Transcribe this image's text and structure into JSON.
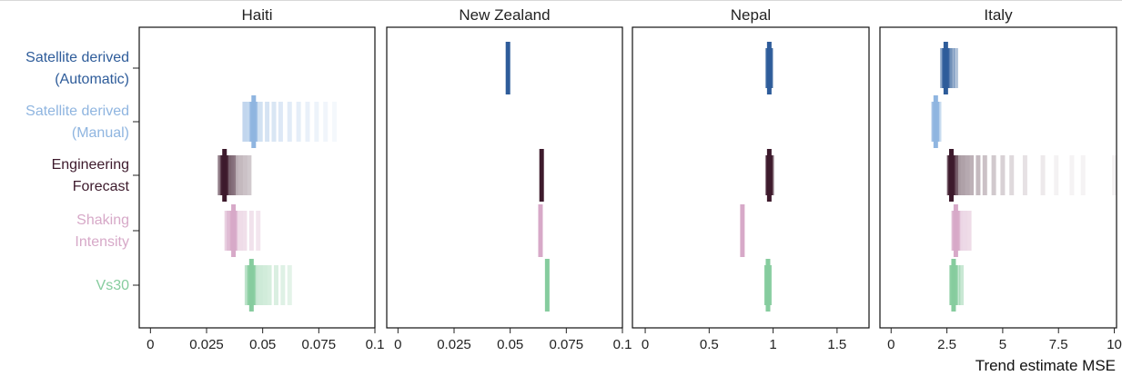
{
  "chart_data": {
    "type": "strip",
    "xlabel": "Trend estimate MSE",
    "categories": [
      {
        "key": "sat_auto",
        "label": [
          "Satellite derived",
          "(Automatic)"
        ],
        "color": "#2E5C9A"
      },
      {
        "key": "sat_manual",
        "label": [
          "Satellite derived",
          "(Manual)"
        ],
        "color": "#8FB5E0"
      },
      {
        "key": "eng",
        "label": [
          "Engineering",
          "Forecast"
        ],
        "color": "#3D1A2C"
      },
      {
        "key": "shaking",
        "label": [
          "Shaking",
          "Intensity"
        ],
        "color": "#D7A9C8"
      },
      {
        "key": "vs30",
        "label": [
          "Vs30"
        ],
        "color": "#86CC9E"
      }
    ],
    "panels": [
      {
        "title": "Haiti",
        "xlim": [
          -0.005,
          0.1
        ],
        "ticks": [
          0,
          0.025,
          0.05,
          0.075,
          0.1
        ],
        "tick_labels": [
          "0",
          "0.025",
          "0.05",
          "0.075",
          "0.1"
        ],
        "series": {
          "sat_auto": {
            "mean": null,
            "spread": []
          },
          "sat_manual": {
            "mean": 0.046,
            "spread": [
              0.042,
              0.044,
              0.045,
              0.047,
              0.049,
              0.052,
              0.055,
              0.058,
              0.062,
              0.066,
              0.07,
              0.074,
              0.078,
              0.082
            ]
          },
          "eng": {
            "mean": 0.033,
            "spread": [
              0.031,
              0.032,
              0.034,
              0.035,
              0.036,
              0.037,
              0.038,
              0.04,
              0.042,
              0.044
            ]
          },
          "shaking": {
            "mean": 0.037,
            "spread": [
              0.034,
              0.035,
              0.036,
              0.038,
              0.04,
              0.042,
              0.045,
              0.048
            ]
          },
          "vs30": {
            "mean": 0.045,
            "spread": [
              0.043,
              0.044,
              0.046,
              0.047,
              0.049,
              0.051,
              0.053,
              0.056,
              0.059,
              0.062
            ]
          }
        }
      },
      {
        "title": "New Zealand",
        "xlim": [
          -0.005,
          0.1
        ],
        "ticks": [
          0,
          0.025,
          0.05,
          0.075,
          0.1
        ],
        "tick_labels": [
          "0",
          "0.025",
          "0.05",
          "0.075",
          "0.1"
        ],
        "series": {
          "sat_auto": {
            "mean": 0.049,
            "spread": []
          },
          "sat_manual": {
            "mean": null,
            "spread": []
          },
          "eng": {
            "mean": 0.064,
            "spread": []
          },
          "shaking": {
            "mean": 0.0635,
            "spread": []
          },
          "vs30": {
            "mean": 0.0665,
            "spread": []
          }
        }
      },
      {
        "title": "Nepal",
        "xlim": [
          -0.1,
          1.75
        ],
        "ticks": [
          0,
          0.5,
          1,
          1.5
        ],
        "tick_labels": [
          "0",
          "0.5",
          "1",
          "1.5"
        ],
        "series": {
          "sat_auto": {
            "mean": 0.97,
            "spread": [
              0.96,
              0.98
            ]
          },
          "sat_manual": {
            "mean": null,
            "spread": []
          },
          "eng": {
            "mean": 0.97,
            "spread": [
              0.96,
              0.98,
              0.99
            ]
          },
          "shaking": {
            "mean": 0.76,
            "spread": []
          },
          "vs30": {
            "mean": 0.96,
            "spread": [
              0.95,
              0.97
            ]
          }
        }
      },
      {
        "title": "Italy",
        "xlim": [
          -0.5,
          10.1
        ],
        "ticks": [
          0,
          2.5,
          5,
          7.5,
          10
        ],
        "tick_labels": [
          "0",
          "2.5",
          "5",
          "7.5",
          "10"
        ],
        "series": {
          "sat_auto": {
            "mean": 2.45,
            "spread": [
              2.3,
              2.4,
              2.55,
              2.65,
              2.75,
              2.9
            ]
          },
          "sat_manual": {
            "mean": 2.0,
            "spread": [
              1.9,
              2.05,
              2.15
            ]
          },
          "eng": {
            "mean": 2.7,
            "spread": [
              2.6,
              2.8,
              2.9,
              3.0,
              3.2,
              3.4,
              3.6,
              3.9,
              4.2,
              4.6,
              5.0,
              5.4,
              6.0,
              6.8,
              7.4,
              8.1,
              8.6,
              10.0
            ]
          },
          "shaking": {
            "mean": 2.9,
            "spread": [
              2.8,
              3.0,
              3.1,
              3.3,
              3.5
            ]
          },
          "vs30": {
            "mean": 2.8,
            "spread": [
              2.7,
              2.9,
              3.0,
              3.15
            ]
          }
        }
      }
    ]
  }
}
